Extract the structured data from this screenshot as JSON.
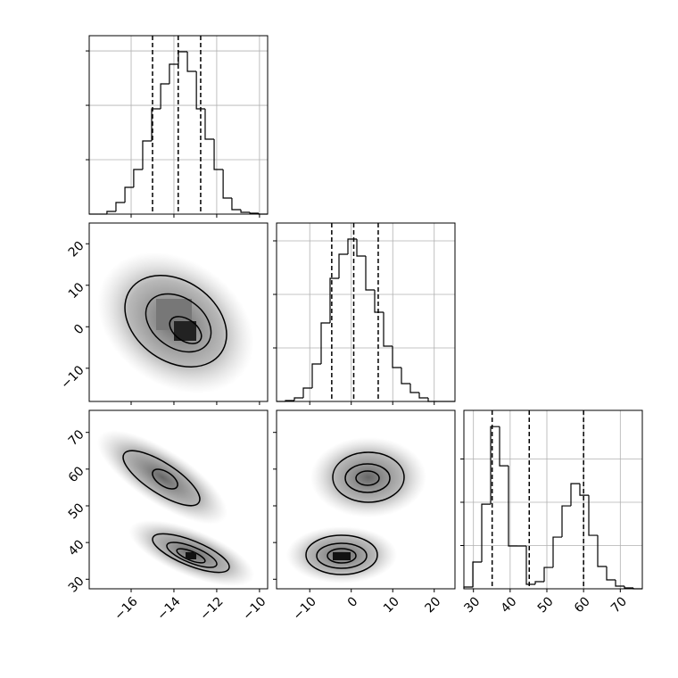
{
  "chart_data": {
    "type": "corner",
    "color": "#000000",
    "grid": true,
    "parameters": [
      {
        "lim": [
          -17.96,
          -9.62
        ],
        "ticks": [
          {
            "value": -16,
            "label": "−16"
          },
          {
            "value": -14,
            "label": "−14"
          },
          {
            "value": -12,
            "label": "−12"
          },
          {
            "value": -10,
            "label": "−10"
          }
        ],
        "bins": [
          -17.96,
          -17.54,
          -17.13,
          -16.71,
          -16.29,
          -15.88,
          -15.46,
          -15.04,
          -14.62,
          -14.21,
          -13.79,
          -13.37,
          -12.95,
          -12.54,
          -12.12,
          -11.7,
          -11.29,
          -10.87,
          -10.45,
          -10.04,
          -9.62
        ],
        "counts": [
          0,
          0,
          49,
          213,
          492,
          820,
          1345,
          1935,
          2394,
          2755,
          2985,
          2624,
          1935,
          1378,
          820,
          295,
          82,
          33,
          16,
          0
        ],
        "count_lim": [
          0,
          3280
        ],
        "count_ticks": [
          1000,
          2000,
          3000
        ],
        "quantiles": [
          -15.0,
          -13.8,
          -12.75
        ]
      },
      {
        "lim": [
          -18,
          25
        ],
        "ticks": [
          {
            "value": -10,
            "label": "−10"
          },
          0,
          10,
          20
        ],
        "bins": [
          -18,
          -15.85,
          -13.7,
          -11.55,
          -9.4,
          -7.25,
          -5.1,
          -2.95,
          -0.8,
          1.35,
          3.5,
          5.65,
          7.8,
          9.95,
          12.1,
          14.25,
          16.4,
          18.55,
          20.7,
          22.85,
          25
        ],
        "counts": [
          0,
          17,
          67,
          250,
          700,
          1467,
          2300,
          2750,
          3033,
          2717,
          2083,
          1667,
          1033,
          633,
          333,
          167,
          67,
          0,
          0,
          0
        ],
        "count_lim": [
          0,
          3333
        ],
        "count_ticks": [
          1000,
          2000,
          3000
        ],
        "quantiles": [
          -4.7,
          0.6,
          6.5
        ]
      },
      {
        "lim": [
          27.4,
          76
        ],
        "ticks": [
          30,
          40,
          50,
          60,
          70
        ],
        "bins": [
          27.4,
          29.83,
          32.26,
          34.69,
          37.12,
          39.55,
          41.98,
          44.41,
          46.84,
          49.27,
          51.7,
          54.13,
          56.56,
          58.99,
          61.42,
          63.85,
          66.28,
          68.71,
          71.14,
          73.57,
          76
        ],
        "counts": [
          41,
          618,
          1957,
          3749,
          2843,
          989,
          989,
          103,
          165,
          494,
          1195,
          1916,
          2431,
          2163,
          1236,
          515,
          206,
          62,
          21,
          0
        ],
        "count_lim": [
          0,
          4124
        ],
        "count_ticks": [
          1000,
          2000,
          3000
        ],
        "quantiles": [
          35.1,
          45.2,
          60.0
        ]
      }
    ]
  }
}
